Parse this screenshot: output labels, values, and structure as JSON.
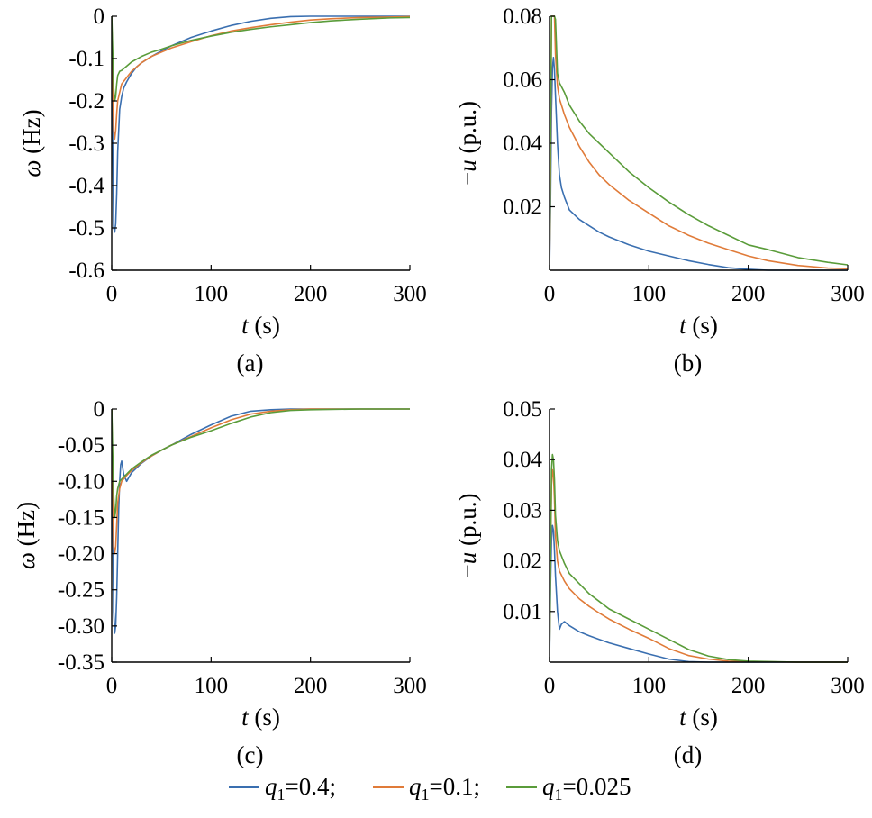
{
  "chart_data": [
    {
      "type": "line",
      "panel_label": "(a)",
      "xlabel": "t (s)",
      "ylabel": "ω (Hz)",
      "xlim": [
        0,
        300
      ],
      "ylim": [
        -0.6,
        0
      ],
      "xticks": [
        0,
        100,
        200,
        300
      ],
      "xtick_labels": [
        "0",
        "100",
        "200",
        "300"
      ],
      "yticks": [
        0,
        -0.1,
        -0.2,
        -0.3,
        -0.4,
        -0.5,
        -0.6
      ],
      "ytick_labels": [
        "0",
        "-0.1",
        "-0.2",
        "-0.3",
        "-0.4",
        "-0.5",
        "-0.6"
      ],
      "series": [
        {
          "name": "q1=0.4",
          "color": "#3a6fb0",
          "x": [
            0,
            1,
            2,
            3,
            4,
            5,
            6,
            8,
            10,
            12,
            15,
            20,
            25,
            30,
            40,
            50,
            60,
            80,
            100,
            120,
            140,
            160,
            180,
            200,
            220,
            250,
            300
          ],
          "y": [
            0,
            -0.3,
            -0.5,
            -0.51,
            -0.49,
            -0.42,
            -0.32,
            -0.22,
            -0.19,
            -0.17,
            -0.155,
            -0.135,
            -0.12,
            -0.11,
            -0.095,
            -0.082,
            -0.07,
            -0.05,
            -0.035,
            -0.022,
            -0.012,
            -0.005,
            -0.001,
            0,
            0,
            0,
            0
          ]
        },
        {
          "name": "q1=0.1",
          "color": "#e07b39",
          "x": [
            0,
            1,
            2,
            3,
            4,
            5,
            6,
            8,
            10,
            15,
            20,
            30,
            40,
            50,
            60,
            80,
            100,
            120,
            140,
            160,
            180,
            200,
            220,
            250,
            280,
            300
          ],
          "y": [
            0,
            -0.15,
            -0.27,
            -0.29,
            -0.27,
            -0.23,
            -0.2,
            -0.18,
            -0.16,
            -0.145,
            -0.13,
            -0.11,
            -0.095,
            -0.085,
            -0.075,
            -0.06,
            -0.046,
            -0.035,
            -0.027,
            -0.02,
            -0.014,
            -0.009,
            -0.006,
            -0.003,
            -0.002,
            -0.001
          ]
        },
        {
          "name": "q1=0.025",
          "color": "#5a9c3a",
          "x": [
            0,
            1,
            2,
            3,
            4,
            5,
            6,
            8,
            10,
            15,
            20,
            30,
            40,
            50,
            60,
            80,
            100,
            120,
            140,
            160,
            180,
            200,
            220,
            250,
            280,
            300
          ],
          "y": [
            0,
            -0.08,
            -0.17,
            -0.2,
            -0.19,
            -0.16,
            -0.14,
            -0.13,
            -0.128,
            -0.118,
            -0.108,
            -0.095,
            -0.085,
            -0.078,
            -0.07,
            -0.057,
            -0.047,
            -0.038,
            -0.031,
            -0.025,
            -0.02,
            -0.015,
            -0.011,
            -0.007,
            -0.004,
            -0.003
          ]
        }
      ]
    },
    {
      "type": "line",
      "panel_label": "(b)",
      "xlabel": "t (s)",
      "ylabel": "−u (p.u.)",
      "xlim": [
        0,
        300
      ],
      "ylim": [
        0,
        0.08
      ],
      "xticks": [
        0,
        100,
        200,
        300
      ],
      "xtick_labels": [
        "0",
        "100",
        "200",
        "300"
      ],
      "yticks": [
        0.02,
        0.04,
        0.06,
        0.08
      ],
      "ytick_labels": [
        "0.02",
        "0.04",
        "0.06",
        "0.08"
      ],
      "series": [
        {
          "name": "q1=0.4",
          "color": "#3a6fb0",
          "x": [
            0,
            1,
            2,
            3,
            4,
            5,
            6,
            8,
            10,
            12,
            15,
            20,
            30,
            40,
            50,
            60,
            80,
            100,
            120,
            140,
            160,
            180,
            200,
            220,
            250,
            300
          ],
          "y": [
            0,
            0.02,
            0.05,
            0.064,
            0.067,
            0.063,
            0.055,
            0.04,
            0.03,
            0.026,
            0.023,
            0.019,
            0.016,
            0.014,
            0.012,
            0.0105,
            0.008,
            0.006,
            0.0045,
            0.003,
            0.0018,
            0.0008,
            0.0003,
            0,
            0,
            0
          ]
        },
        {
          "name": "q1=0.1",
          "color": "#e07b39",
          "x": [
            0,
            1,
            2,
            3,
            4,
            5,
            6,
            8,
            10,
            15,
            20,
            30,
            40,
            50,
            60,
            80,
            100,
            120,
            140,
            160,
            180,
            200,
            220,
            250,
            280,
            300
          ],
          "y": [
            0,
            0.03,
            0.08,
            0.08,
            0.08,
            0.08,
            0.068,
            0.058,
            0.054,
            0.049,
            0.045,
            0.039,
            0.034,
            0.03,
            0.027,
            0.022,
            0.018,
            0.014,
            0.011,
            0.0085,
            0.0065,
            0.0045,
            0.003,
            0.0015,
            0.0007,
            0.0005
          ]
        },
        {
          "name": "q1=0.025",
          "color": "#5a9c3a",
          "x": [
            0,
            1,
            2,
            3,
            4,
            5,
            6,
            8,
            10,
            15,
            20,
            30,
            40,
            50,
            60,
            80,
            100,
            120,
            140,
            160,
            180,
            200,
            220,
            250,
            280,
            300
          ],
          "y": [
            0,
            0.04,
            0.08,
            0.08,
            0.08,
            0.08,
            0.079,
            0.062,
            0.059,
            0.056,
            0.052,
            0.047,
            0.043,
            0.04,
            0.037,
            0.031,
            0.026,
            0.0215,
            0.0175,
            0.014,
            0.011,
            0.008,
            0.0065,
            0.004,
            0.0025,
            0.0017
          ]
        }
      ]
    },
    {
      "type": "line",
      "panel_label": "(c)",
      "xlabel": "t (s)",
      "ylabel": "ω (Hz)",
      "xlim": [
        0,
        300
      ],
      "ylim": [
        -0.35,
        0
      ],
      "xticks": [
        0,
        100,
        200,
        300
      ],
      "xtick_labels": [
        "0",
        "100",
        "200",
        "300"
      ],
      "yticks": [
        0,
        -0.05,
        -0.1,
        -0.15,
        -0.2,
        -0.25,
        -0.3,
        -0.35
      ],
      "ytick_labels": [
        "0",
        "-0.05",
        "-0.10",
        "-0.15",
        "-0.20",
        "-0.25",
        "-0.30",
        "-0.35"
      ],
      "series": [
        {
          "name": "q1=0.4",
          "color": "#3a6fb0",
          "x": [
            0,
            1,
            2,
            3,
            4,
            5,
            6,
            7,
            8,
            9,
            10,
            12,
            15,
            20,
            30,
            40,
            50,
            60,
            80,
            100,
            120,
            140,
            160,
            180,
            200,
            250,
            300
          ],
          "y": [
            0,
            -0.15,
            -0.28,
            -0.31,
            -0.3,
            -0.26,
            -0.2,
            -0.14,
            -0.1,
            -0.077,
            -0.072,
            -0.09,
            -0.1,
            -0.088,
            -0.075,
            -0.065,
            -0.057,
            -0.05,
            -0.035,
            -0.022,
            -0.01,
            -0.003,
            -0.001,
            0,
            0,
            0,
            0
          ]
        },
        {
          "name": "q1=0.1",
          "color": "#e07b39",
          "x": [
            0,
            1,
            2,
            3,
            4,
            5,
            6,
            8,
            10,
            15,
            20,
            30,
            40,
            50,
            60,
            80,
            100,
            120,
            140,
            160,
            180,
            200,
            250,
            300
          ],
          "y": [
            0,
            -0.1,
            -0.19,
            -0.2,
            -0.19,
            -0.16,
            -0.13,
            -0.11,
            -0.1,
            -0.092,
            -0.085,
            -0.074,
            -0.065,
            -0.057,
            -0.05,
            -0.038,
            -0.026,
            -0.015,
            -0.007,
            -0.003,
            -0.001,
            0,
            0,
            0
          ]
        },
        {
          "name": "q1=0.025",
          "color": "#5a9c3a",
          "x": [
            0,
            1,
            2,
            3,
            4,
            5,
            6,
            8,
            10,
            15,
            20,
            30,
            40,
            50,
            60,
            80,
            100,
            120,
            140,
            160,
            180,
            200,
            250,
            300
          ],
          "y": [
            0,
            -0.06,
            -0.12,
            -0.15,
            -0.14,
            -0.12,
            -0.11,
            -0.1,
            -0.097,
            -0.09,
            -0.083,
            -0.073,
            -0.064,
            -0.057,
            -0.05,
            -0.039,
            -0.03,
            -0.02,
            -0.011,
            -0.005,
            -0.002,
            -0.001,
            0,
            0
          ]
        }
      ]
    },
    {
      "type": "line",
      "panel_label": "(d)",
      "xlabel": "t (s)",
      "ylabel": "−u (p.u.)",
      "xlim": [
        0,
        300
      ],
      "ylim": [
        0,
        0.05
      ],
      "xticks": [
        0,
        100,
        200,
        300
      ],
      "xtick_labels": [
        "0",
        "100",
        "200",
        "300"
      ],
      "yticks": [
        0.01,
        0.02,
        0.03,
        0.04,
        0.05
      ],
      "ytick_labels": [
        "0.01",
        "0.02",
        "0.03",
        "0.04",
        "0.05"
      ],
      "series": [
        {
          "name": "q1=0.4",
          "color": "#3a6fb0",
          "x": [
            0,
            1,
            2,
            3,
            4,
            5,
            6,
            8,
            10,
            12,
            15,
            20,
            30,
            40,
            50,
            60,
            80,
            100,
            120,
            140,
            160,
            200,
            250,
            300
          ],
          "y": [
            0,
            0.015,
            0.024,
            0.027,
            0.026,
            0.022,
            0.017,
            0.01,
            0.0065,
            0.0075,
            0.008,
            0.0072,
            0.006,
            0.0052,
            0.0045,
            0.0038,
            0.0027,
            0.0016,
            0.0006,
            0.0001,
            0,
            0,
            0,
            0
          ]
        },
        {
          "name": "q1=0.1",
          "color": "#e07b39",
          "x": [
            0,
            1,
            2,
            3,
            4,
            5,
            6,
            8,
            10,
            15,
            20,
            30,
            40,
            50,
            60,
            80,
            100,
            120,
            140,
            160,
            180,
            200,
            250,
            300
          ],
          "y": [
            0,
            0.02,
            0.035,
            0.038,
            0.037,
            0.032,
            0.025,
            0.02,
            0.018,
            0.016,
            0.0145,
            0.0125,
            0.011,
            0.0097,
            0.0085,
            0.0065,
            0.0047,
            0.0027,
            0.0013,
            0.0006,
            0.0002,
            0.0001,
            0,
            0
          ]
        },
        {
          "name": "q1=0.025",
          "color": "#5a9c3a",
          "x": [
            0,
            1,
            2,
            3,
            4,
            5,
            6,
            8,
            10,
            15,
            20,
            30,
            40,
            50,
            60,
            80,
            100,
            120,
            140,
            160,
            180,
            200,
            250,
            300
          ],
          "y": [
            0,
            0.02,
            0.038,
            0.041,
            0.04,
            0.036,
            0.029,
            0.024,
            0.022,
            0.0195,
            0.0175,
            0.0155,
            0.0135,
            0.012,
            0.0105,
            0.0085,
            0.0065,
            0.0045,
            0.0025,
            0.0012,
            0.0005,
            0.0002,
            0,
            0
          ]
        }
      ]
    }
  ],
  "legend": {
    "placement": "bottom-center",
    "entries": [
      {
        "name": "q1=0.4",
        "label_main": "q",
        "label_sub": "1",
        "label_rest": "=0.4;",
        "color": "#3a6fb0"
      },
      {
        "name": "q1=0.1",
        "label_main": "q",
        "label_sub": "1",
        "label_rest": "=0.1;",
        "color": "#e07b39"
      },
      {
        "name": "q1=0.025",
        "label_main": "q",
        "label_sub": "1",
        "label_rest": "=0.025",
        "color": "#5a9c3a"
      }
    ]
  }
}
